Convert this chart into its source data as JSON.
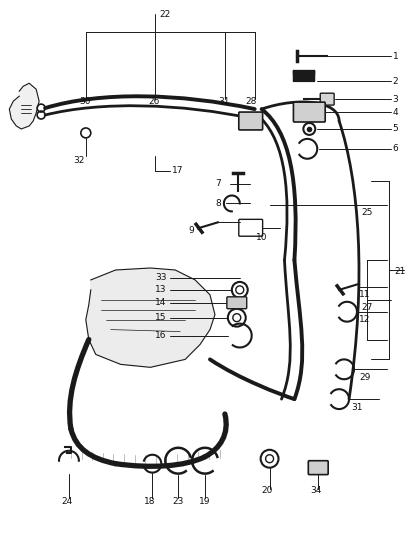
{
  "bg_color": "#ffffff",
  "line_color": "#1a1a1a",
  "text_color": "#111111",
  "fig_width": 4.14,
  "fig_height": 5.38,
  "dpi": 100,
  "font_size": 6.5,
  "hose_lw": 2.8,
  "hose_lw2": 2.0,
  "part_lw": 1.2
}
